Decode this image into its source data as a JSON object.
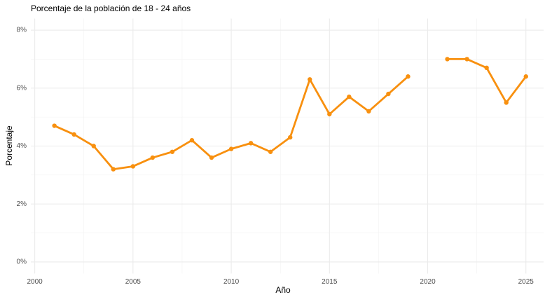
{
  "chart_data": {
    "type": "line",
    "title": "Porcentaje de la población de 18 - 24 años",
    "x_label": "Año",
    "y_label": "Porcentaje",
    "x": [
      2001,
      2002,
      2003,
      2004,
      2005,
      2006,
      2007,
      2008,
      2009,
      2010,
      2011,
      2012,
      2013,
      2014,
      2015,
      2016,
      2017,
      2018,
      2019,
      2020,
      2021,
      2022,
      2023,
      2024,
      2025
    ],
    "series": [
      {
        "name": "Porcentaje",
        "color": "#f8900f",
        "values": [
          4.7,
          4.4,
          4.0,
          3.2,
          3.3,
          3.6,
          3.8,
          4.2,
          3.6,
          3.9,
          4.1,
          3.8,
          4.3,
          6.3,
          5.1,
          5.7,
          5.2,
          5.8,
          6.4,
          null,
          7.0,
          7.0,
          6.7,
          5.5,
          6.4
        ]
      }
    ],
    "xlim": [
      1999.8,
      2025.9
    ],
    "xticks": [
      2000,
      2005,
      2010,
      2015,
      2020,
      2025
    ],
    "ylim": [
      -0.4,
      8.4
    ],
    "yticks": [
      {
        "value": 0,
        "label": "0%"
      },
      {
        "value": 2,
        "label": "2%"
      },
      {
        "value": 4,
        "label": "4%"
      },
      {
        "value": 6,
        "label": "6%"
      },
      {
        "value": 8,
        "label": "8%"
      }
    ],
    "grid": true
  }
}
